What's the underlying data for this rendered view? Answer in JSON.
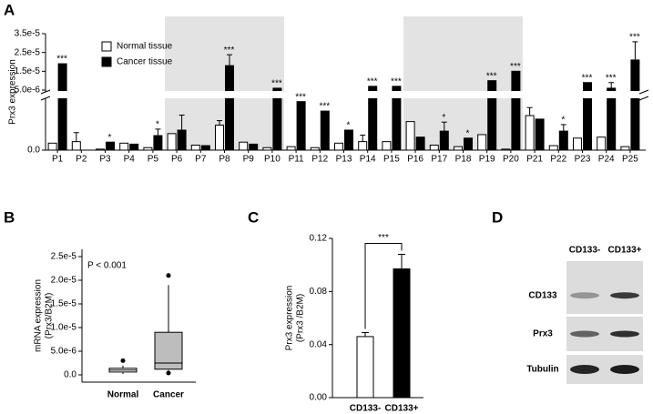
{
  "panel_labels": [
    "A",
    "B",
    "C",
    "D"
  ],
  "chart_data": [
    {
      "type": "broken-bar",
      "ylabel": "Prx3 expression",
      "categories": [
        "P1",
        "P2",
        "P3",
        "P4",
        "P5",
        "P6",
        "P7",
        "P8",
        "P9",
        "P10",
        "P11",
        "P12",
        "P13",
        "P14",
        "P15",
        "P16",
        "P17",
        "P18",
        "P19",
        "P20",
        "P21",
        "P22",
        "P23",
        "P24",
        "P25"
      ],
      "series": [
        {
          "name": "Normal tissue",
          "color": "#ffffff",
          "values": [
            1.4e-07,
            1.7e-07,
            2e-08,
            1.4e-07,
            5e-08,
            3.3e-07,
            1e-07,
            5e-07,
            1.6e-07,
            5e-08,
            7e-08,
            5e-08,
            1.4e-07,
            1.7e-07,
            1.7e-07,
            5.7e-07,
            1e-07,
            7e-08,
            3.1e-07,
            2e-08,
            6.9e-07,
            9e-08,
            2.4e-07,
            2.6e-07,
            7e-08
          ],
          "errors": [
            null,
            1.8e-07,
            null,
            null,
            null,
            null,
            null,
            9e-08,
            null,
            null,
            null,
            null,
            null,
            1.3e-07,
            null,
            null,
            null,
            null,
            null,
            null,
            1.6e-07,
            null,
            null,
            null,
            null
          ]
        },
        {
          "name": "Cancer tissue",
          "color": "#000000",
          "values": [
            1.9e-05,
            0,
            1.6e-07,
            1.2e-07,
            2.9e-07,
            4e-07,
            9e-08,
            1.8e-05,
            1.2e-07,
            6e-06,
            9.7e-07,
            7.8e-07,
            4e-07,
            7e-06,
            7e-06,
            2.6e-07,
            3.8e-07,
            2.4e-07,
            1e-05,
            1.5e-05,
            6.2e-07,
            3.8e-07,
            9e-06,
            6e-06,
            2.1e-05
          ],
          "errors": [
            null,
            null,
            null,
            null,
            1.3e-07,
            3e-07,
            null,
            5.8e-06,
            null,
            null,
            null,
            null,
            null,
            null,
            null,
            null,
            1.8e-07,
            null,
            null,
            null,
            null,
            1.3e-07,
            null,
            3e-06,
            9.7e-06
          ]
        }
      ],
      "significance": [
        "***",
        null,
        "*",
        null,
        "*",
        null,
        null,
        "***",
        null,
        "***",
        "***",
        "***",
        "*",
        "***",
        "***",
        null,
        "*",
        "*",
        "***",
        "***",
        null,
        "*",
        "***",
        "***",
        "***"
      ],
      "ylim": [
        0,
        3.5e-05
      ],
      "ybreak": [
        1e-06,
        5e-06
      ],
      "yticks": [
        {
          "value": 0,
          "label": "0.0"
        },
        {
          "value": 5e-06,
          "label": "5.0e-6"
        },
        {
          "value": 1.5e-05,
          "label": "1.5e-5"
        },
        {
          "value": 2.5e-05,
          "label": "2.5e-5"
        },
        {
          "value": 3.5e-05,
          "label": "3.5e-5"
        }
      ],
      "legend": "upper-left"
    },
    {
      "type": "box",
      "ylabel": [
        "mRNA expression",
        "(Prx3/B2M)"
      ],
      "annotation": "P < 0.001",
      "categories": [
        "Normal",
        "Cancer"
      ],
      "colors": [
        "#ffffff",
        "#bdbdbd"
      ],
      "boxes": [
        {
          "min": 2e-07,
          "q1": 6e-07,
          "median": 1e-06,
          "q3": 1.4e-06,
          "max": 2e-06,
          "outliers": [
            3e-06
          ]
        },
        {
          "min": 1e-06,
          "q1": 1.2e-06,
          "median": 2.5e-06,
          "q3": 9e-06,
          "max": 1.9e-05,
          "outliers": [
            2.1e-05,
            4e-07
          ]
        }
      ],
      "ylim": [
        0,
        2.5e-05
      ],
      "yticks": [
        {
          "value": 0,
          "label": "0.0"
        },
        {
          "value": 5e-06,
          "label": "5.0e-6"
        },
        {
          "value": 1e-05,
          "label": "1.0e-5"
        },
        {
          "value": 1.5e-05,
          "label": "1.5e-5"
        },
        {
          "value": 2e-05,
          "label": "2.0e-5"
        },
        {
          "value": 2.5e-05,
          "label": "2.5e-5"
        }
      ]
    },
    {
      "type": "bar",
      "ylabel": [
        "Prx3 expression",
        "(Prx3 /B2M)"
      ],
      "significance": "***",
      "categories": [
        "CD133-",
        "CD133+"
      ],
      "colors": [
        "#ffffff",
        "#000000"
      ],
      "values": [
        0.046,
        0.097
      ],
      "errors": [
        0.003,
        0.011
      ],
      "ylim": [
        0,
        0.12
      ],
      "yticks": [
        {
          "value": 0,
          "label": "0.00"
        },
        {
          "value": 0.04,
          "label": "0.04"
        },
        {
          "value": 0.08,
          "label": "0.08"
        },
        {
          "value": 0.12,
          "label": "0.12"
        }
      ]
    }
  ],
  "blot": {
    "lanes": [
      "CD133-",
      "CD133+"
    ],
    "rows": [
      "CD133",
      "Prx3",
      "Tubulin"
    ]
  }
}
